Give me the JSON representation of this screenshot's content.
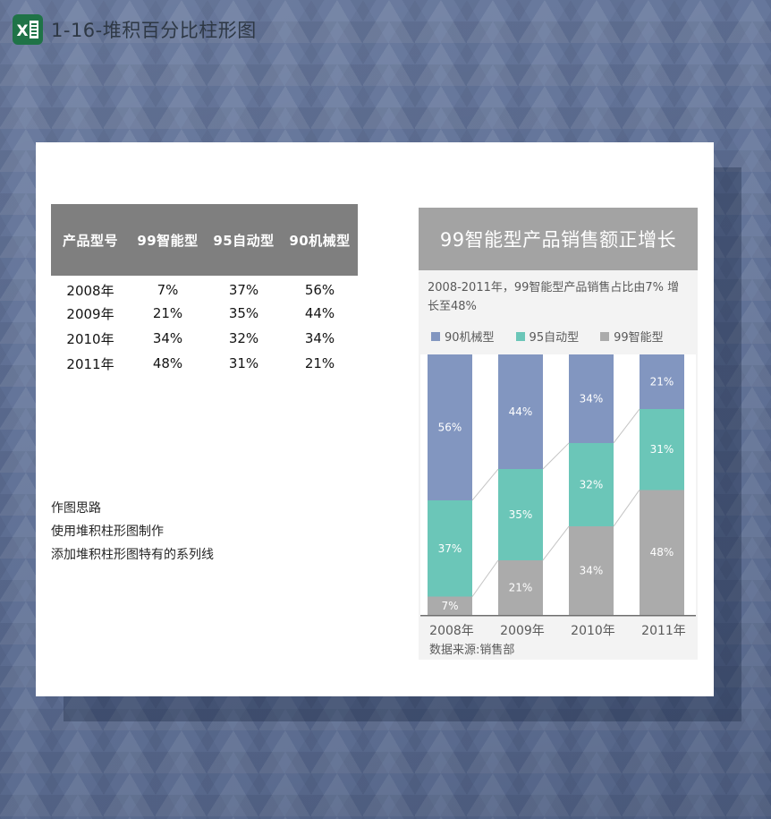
{
  "window": {
    "title": "1-16-堆积百分比柱形图"
  },
  "table": {
    "headers": [
      "产品型号",
      "99智能型",
      "95自动型",
      "90机械型"
    ],
    "rows": [
      [
        "2008年",
        "7%",
        "37%",
        "56%"
      ],
      [
        "2009年",
        "21%",
        "35%",
        "44%"
      ],
      [
        "2010年",
        "34%",
        "32%",
        "34%"
      ],
      [
        "2011年",
        "48%",
        "31%",
        "21%"
      ]
    ]
  },
  "notes": {
    "lines": [
      "作图思路",
      "使用堆积柱形图制作",
      "添加堆积柱形图特有的系列线"
    ]
  },
  "chart_data": {
    "type": "bar",
    "subtype": "stacked-100-percent",
    "title": "99智能型产品销售额正增长",
    "subtitle": "2008-2011年，99智能型产品销售占比由7% 增长至48%",
    "source": "数据来源:销售部",
    "categories": [
      "2008年",
      "2009年",
      "2010年",
      "2011年"
    ],
    "series": [
      {
        "name": "99智能型",
        "color": "#ababab",
        "values": [
          7,
          21,
          34,
          48
        ]
      },
      {
        "name": "95自动型",
        "color": "#6bc6b8",
        "values": [
          37,
          35,
          32,
          31
        ]
      },
      {
        "name": "90机械型",
        "color": "#8296c0",
        "values": [
          56,
          44,
          34,
          21
        ]
      }
    ],
    "stack_order": "bottom-to-top",
    "legend": [
      {
        "label": "90机械型",
        "color": "#8296c0"
      },
      {
        "label": "95自动型",
        "color": "#6bc6b8"
      },
      {
        "label": "99智能型",
        "color": "#ababab"
      }
    ],
    "legend_position": "top-left",
    "value_suffix": "%",
    "ylim": [
      0,
      100
    ],
    "grid": false,
    "connector_lines": true,
    "label_color": "#ffffff",
    "connector_color": "#c4c4c4",
    "axis_color": "#6e6e6e",
    "plot_bg": "#ffffff"
  }
}
